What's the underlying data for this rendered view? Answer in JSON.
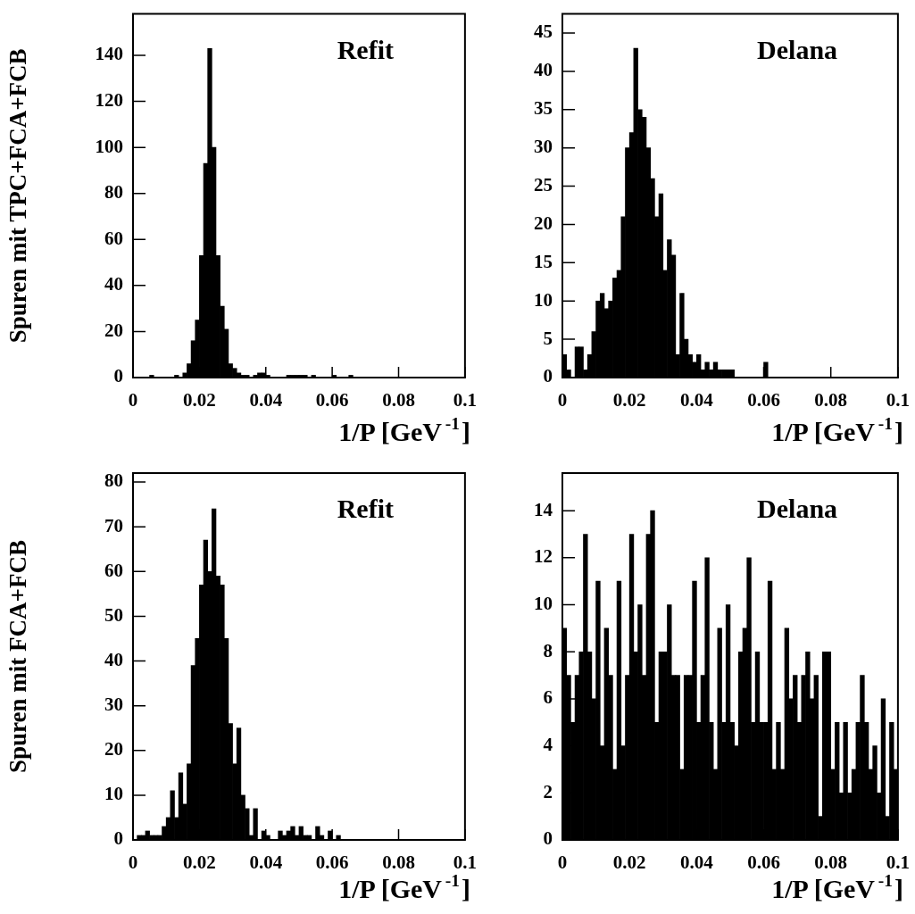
{
  "chart_data": [
    {
      "type": "histogram",
      "title": "Refit",
      "ylabel": "Spuren mit TPC+FCA+FCB",
      "xlabel": "1/P [GeV$^{-1}$]",
      "color": "#000000",
      "xlim": [
        0,
        0.1
      ],
      "xticks": [
        0,
        0.02,
        0.04,
        0.06,
        0.08,
        0.1
      ],
      "ylim": [
        0,
        158
      ],
      "yticks": [
        0,
        20,
        40,
        60,
        80,
        100,
        120,
        140
      ],
      "bins": [
        0,
        0.00125,
        0.0025,
        0.00375,
        0.005,
        0.00625,
        0.0075,
        0.00875,
        0.01,
        0.01125,
        0.0125,
        0.01375,
        0.015,
        0.01625,
        0.0175,
        0.01875,
        0.02,
        0.02125,
        0.0225,
        0.02375,
        0.025,
        0.02625,
        0.0275,
        0.02875,
        0.03,
        0.03125,
        0.0325,
        0.03375,
        0.035,
        0.03625,
        0.0375,
        0.03875,
        0.04,
        0.04125,
        0.0425,
        0.04375,
        0.045,
        0.04625,
        0.0475,
        0.04875,
        0.05,
        0.05125,
        0.0525,
        0.05375,
        0.055,
        0.05625,
        0.0575,
        0.05875,
        0.06,
        0.06125,
        0.0625,
        0.06375,
        0.065,
        0.06625,
        0.0675,
        0.06875,
        0.07,
        0.07125,
        0.0725,
        0.07375,
        0.075,
        0.07625,
        0.0775,
        0.07875,
        0.08,
        0.08125,
        0.0825,
        0.08375,
        0.085,
        0.08625,
        0.0875,
        0.08875,
        0.09,
        0.09125,
        0.0925,
        0.09375,
        0.095,
        0.09625,
        0.0975,
        0.09875,
        0.1
      ],
      "values": [
        0,
        0,
        0,
        0,
        1,
        0,
        0,
        0,
        0,
        0,
        1,
        0,
        2,
        6,
        16,
        25,
        53,
        93,
        143,
        100,
        53,
        31,
        21,
        6,
        4,
        2,
        1,
        1,
        0,
        1,
        2,
        2,
        1,
        0,
        0,
        0,
        0,
        1,
        1,
        1,
        1,
        1,
        0,
        1,
        0,
        0,
        0,
        0,
        1,
        0,
        0,
        0,
        1,
        0,
        0,
        0,
        0,
        0,
        0,
        0,
        0,
        0,
        0,
        0,
        0,
        0,
        0,
        0,
        0,
        0,
        0,
        0,
        0,
        0,
        0,
        0,
        0,
        0,
        0,
        0
      ]
    },
    {
      "type": "histogram",
      "title": "Delana",
      "xlabel": "1/P [GeV$^{-1}$]",
      "color": "#000000",
      "xlim": [
        0,
        0.1
      ],
      "xticks": [
        0,
        0.02,
        0.04,
        0.06,
        0.08,
        0.1
      ],
      "ylim": [
        0,
        47.5
      ],
      "yticks": [
        0,
        5,
        10,
        15,
        20,
        25,
        30,
        35,
        40,
        45
      ],
      "bins": [
        0,
        0.00125,
        0.0025,
        0.00375,
        0.005,
        0.00625,
        0.0075,
        0.00875,
        0.01,
        0.01125,
        0.0125,
        0.01375,
        0.015,
        0.01625,
        0.0175,
        0.01875,
        0.02,
        0.02125,
        0.0225,
        0.02375,
        0.025,
        0.02625,
        0.0275,
        0.02875,
        0.03,
        0.03125,
        0.0325,
        0.03375,
        0.035,
        0.03625,
        0.0375,
        0.03875,
        0.04,
        0.04125,
        0.0425,
        0.04375,
        0.045,
        0.04625,
        0.0475,
        0.04875,
        0.05,
        0.05125,
        0.0525,
        0.05375,
        0.055,
        0.05625,
        0.0575,
        0.05875,
        0.06,
        0.06125,
        0.0625,
        0.06375,
        0.065,
        0.06625,
        0.0675,
        0.06875,
        0.07,
        0.07125,
        0.0725,
        0.07375,
        0.075,
        0.07625,
        0.0775,
        0.07875,
        0.08,
        0.08125,
        0.0825,
        0.08375,
        0.085,
        0.08625,
        0.0875,
        0.08875,
        0.09,
        0.09125,
        0.0925,
        0.09375,
        0.095,
        0.09625,
        0.0975,
        0.09875,
        0.1
      ],
      "values": [
        3,
        1,
        0,
        4,
        4,
        1,
        3,
        6,
        10,
        11,
        9,
        10,
        13,
        14,
        21,
        30,
        32,
        43,
        35,
        34,
        30,
        26,
        21,
        24,
        14,
        18,
        16,
        3,
        11,
        5,
        3,
        2,
        3,
        1,
        2,
        1,
        2,
        1,
        1,
        1,
        1,
        0,
        0,
        0,
        0,
        0,
        0,
        0,
        2,
        0,
        0,
        0,
        0,
        0,
        0,
        0,
        0,
        0,
        0,
        0,
        0,
        0,
        0,
        0,
        0,
        0,
        0,
        0,
        0,
        0,
        0,
        0,
        0,
        0,
        0,
        0,
        0,
        0,
        0,
        0
      ]
    },
    {
      "type": "histogram",
      "title": "Refit",
      "ylabel": "Spuren mit FCA+FCB",
      "xlabel": "1/P [GeV$^{-1}$]",
      "color": "#000000",
      "xlim": [
        0,
        0.1
      ],
      "xticks": [
        0,
        0.02,
        0.04,
        0.06,
        0.08,
        0.1
      ],
      "ylim": [
        0,
        82
      ],
      "yticks": [
        0,
        10,
        20,
        30,
        40,
        50,
        60,
        70,
        80
      ],
      "bins": [
        0,
        0.00125,
        0.0025,
        0.00375,
        0.005,
        0.00625,
        0.0075,
        0.00875,
        0.01,
        0.01125,
        0.0125,
        0.01375,
        0.015,
        0.01625,
        0.0175,
        0.01875,
        0.02,
        0.02125,
        0.0225,
        0.02375,
        0.025,
        0.02625,
        0.0275,
        0.02875,
        0.03,
        0.03125,
        0.0325,
        0.03375,
        0.035,
        0.03625,
        0.0375,
        0.03875,
        0.04,
        0.04125,
        0.0425,
        0.04375,
        0.045,
        0.04625,
        0.0475,
        0.04875,
        0.05,
        0.05125,
        0.0525,
        0.05375,
        0.055,
        0.05625,
        0.0575,
        0.05875,
        0.06,
        0.06125,
        0.0625,
        0.06375,
        0.065,
        0.06625,
        0.0675,
        0.06875,
        0.07,
        0.07125,
        0.0725,
        0.07375,
        0.075,
        0.07625,
        0.0775,
        0.07875,
        0.08,
        0.08125,
        0.0825,
        0.08375,
        0.085,
        0.08625,
        0.0875,
        0.08875,
        0.09,
        0.09125,
        0.0925,
        0.09375,
        0.095,
        0.09625,
        0.0975,
        0.09875,
        0.1
      ],
      "values": [
        0,
        1,
        1,
        2,
        1,
        1,
        1,
        3,
        5,
        11,
        5,
        15,
        8,
        17,
        39,
        45,
        57,
        67,
        60,
        74,
        59,
        57,
        45,
        26,
        17,
        25,
        10,
        7,
        1,
        7,
        0,
        2,
        1,
        0,
        0,
        2,
        1,
        2,
        3,
        1,
        3,
        1,
        1,
        0,
        3,
        1,
        0,
        2,
        0,
        1,
        0,
        0,
        0,
        0,
        0,
        0,
        0,
        0,
        0,
        0,
        0,
        0,
        0,
        0,
        0,
        0,
        0,
        0,
        0,
        0,
        0,
        0,
        0,
        0,
        0,
        0,
        0,
        0,
        0,
        0
      ]
    },
    {
      "type": "histogram",
      "title": "Delana",
      "xlabel": "1/P [GeV$^{-1}$]",
      "color": "#000000",
      "xlim": [
        0,
        0.1
      ],
      "xticks": [
        0,
        0.02,
        0.04,
        0.06,
        0.08,
        0.1
      ],
      "ylim": [
        0,
        15.6
      ],
      "yticks": [
        0,
        2,
        4,
        6,
        8,
        10,
        12,
        14
      ],
      "bins": [
        0,
        0.00125,
        0.0025,
        0.00375,
        0.005,
        0.00625,
        0.0075,
        0.00875,
        0.01,
        0.01125,
        0.0125,
        0.01375,
        0.015,
        0.01625,
        0.0175,
        0.01875,
        0.02,
        0.02125,
        0.0225,
        0.02375,
        0.025,
        0.02625,
        0.0275,
        0.02875,
        0.03,
        0.03125,
        0.0325,
        0.03375,
        0.035,
        0.03625,
        0.0375,
        0.03875,
        0.04,
        0.04125,
        0.0425,
        0.04375,
        0.045,
        0.04625,
        0.0475,
        0.04875,
        0.05,
        0.05125,
        0.0525,
        0.05375,
        0.055,
        0.05625,
        0.0575,
        0.05875,
        0.06,
        0.06125,
        0.0625,
        0.06375,
        0.065,
        0.06625,
        0.0675,
        0.06875,
        0.07,
        0.07125,
        0.0725,
        0.07375,
        0.075,
        0.07625,
        0.0775,
        0.07875,
        0.08,
        0.08125,
        0.0825,
        0.08375,
        0.085,
        0.08625,
        0.0875,
        0.08875,
        0.09,
        0.09125,
        0.0925,
        0.09375,
        0.095,
        0.09625,
        0.0975,
        0.09875,
        0.1
      ],
      "values": [
        9,
        7,
        5,
        7,
        8,
        13,
        8,
        6,
        11,
        4,
        9,
        7,
        3,
        11,
        4,
        7,
        13,
        8,
        10,
        7,
        13,
        14,
        5,
        8,
        8,
        10,
        7,
        7,
        3,
        7,
        7,
        11,
        5,
        7,
        12,
        5,
        3,
        9,
        5,
        10,
        5,
        4,
        8,
        9,
        12,
        5,
        8,
        5,
        5,
        11,
        3,
        5,
        3,
        9,
        6,
        7,
        5,
        7,
        8,
        6,
        7,
        1,
        8,
        8,
        3,
        5,
        2,
        5,
        2,
        3,
        5,
        7,
        5,
        3,
        4,
        2,
        6,
        1,
        5,
        3
      ]
    }
  ]
}
